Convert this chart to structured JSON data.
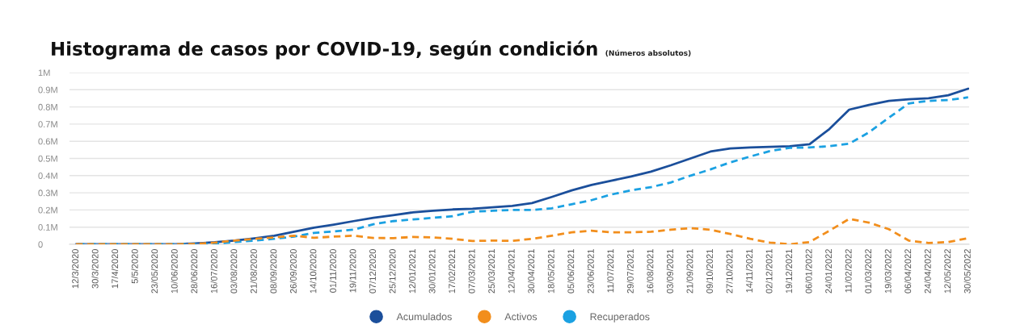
{
  "chart_data": {
    "type": "line",
    "title": "Histograma de casos por COVID-19, según condición",
    "subtitle": "(Números absolutos)",
    "categories": [
      "12/3/2020",
      "30/3/2020",
      "17/4/2020",
      "5/5/2020",
      "23/05/2020",
      "10/06/2020",
      "28/06/2020",
      "16/07/2020",
      "03/08/2020",
      "21/08/2020",
      "08/09/2020",
      "26/09/2020",
      "14/10/2020",
      "01/11/2020",
      "19/11/2020",
      "07/12/2020",
      "25/12/2020",
      "12/01/2021",
      "30/01/2021",
      "17/02/2021",
      "07/03/2021",
      "25/03/2021",
      "12/04/2021",
      "30/04/2021",
      "18/05/2021",
      "05/06/2021",
      "23/06/2021",
      "11/07/2021",
      "29/07/2021",
      "16/08/2021",
      "03/09/2021",
      "21/09/2021",
      "09/10/2021",
      "27/10/2021",
      "14/11/2021",
      "02/12/2021",
      "19/12/2021",
      "06/01/2022",
      "24/01/2022",
      "11/02/2022",
      "01/03/2022",
      "19/03/2022",
      "06/04/2022",
      "24/04/2022",
      "12/05/2022",
      "30/05/2022"
    ],
    "series": [
      {
        "name": "Acumulados",
        "color": "#1b4f9b",
        "line_style": "solid",
        "values": [
          0,
          0,
          0,
          0,
          0,
          0,
          5000,
          12000,
          22000,
          35000,
          50000,
          73000,
          97000,
          115000,
          135000,
          154000,
          170000,
          186000,
          195000,
          203000,
          207000,
          215000,
          224000,
          240000,
          276000,
          314000,
          346000,
          370000,
          395000,
          423000,
          460000,
          500000,
          540000,
          558000,
          564000,
          568000,
          571000,
          583000,
          671000,
          784000,
          812000,
          835000,
          844000,
          850000,
          868000,
          906000
        ]
      },
      {
        "name": "Activos",
        "color": "#f28e1c",
        "line_style": "dashed",
        "values": [
          0,
          0,
          0,
          0,
          0,
          0,
          3000,
          10000,
          22000,
          32000,
          40000,
          50000,
          38000,
          45000,
          50000,
          37000,
          36000,
          43000,
          40000,
          32000,
          19000,
          22000,
          20000,
          32000,
          50000,
          70000,
          79000,
          70000,
          70000,
          73000,
          85000,
          94000,
          85000,
          60000,
          32000,
          10000,
          0,
          13000,
          79000,
          148000,
          126000,
          88000,
          22000,
          8000,
          13000,
          36000
        ]
      },
      {
        "name": "Recuperados",
        "color": "#1ba1e2",
        "line_style": "dashed",
        "values": [
          0,
          0,
          0,
          0,
          0,
          0,
          0,
          4000,
          13000,
          22000,
          32000,
          45000,
          66000,
          75000,
          85000,
          117000,
          135000,
          145000,
          154000,
          164000,
          190000,
          195000,
          200000,
          200000,
          210000,
          233000,
          257000,
          290000,
          314000,
          333000,
          360000,
          400000,
          436000,
          477000,
          511000,
          543000,
          562000,
          564000,
          571000,
          586000,
          652000,
          737000,
          820000,
          835000,
          840000,
          856000
        ]
      }
    ],
    "ylim": [
      0,
      1000000
    ],
    "yticks": [
      0,
      {
        "value": 100000,
        "label": "0.1M"
      },
      {
        "value": 200000,
        "label": "0.2M"
      },
      {
        "value": 300000,
        "label": "0.3M"
      },
      {
        "value": 400000,
        "label": "0.4M"
      },
      {
        "value": 500000,
        "label": "0.5M"
      },
      {
        "value": 600000,
        "label": "0.6M"
      },
      {
        "value": 700000,
        "label": "0.7M"
      },
      {
        "value": 800000,
        "label": "0.8M"
      },
      {
        "value": 900000,
        "label": "0.9M"
      },
      {
        "value": 1000000,
        "label": "1M"
      }
    ],
    "grid": "y",
    "legend": "bottom",
    "marker": "none"
  }
}
